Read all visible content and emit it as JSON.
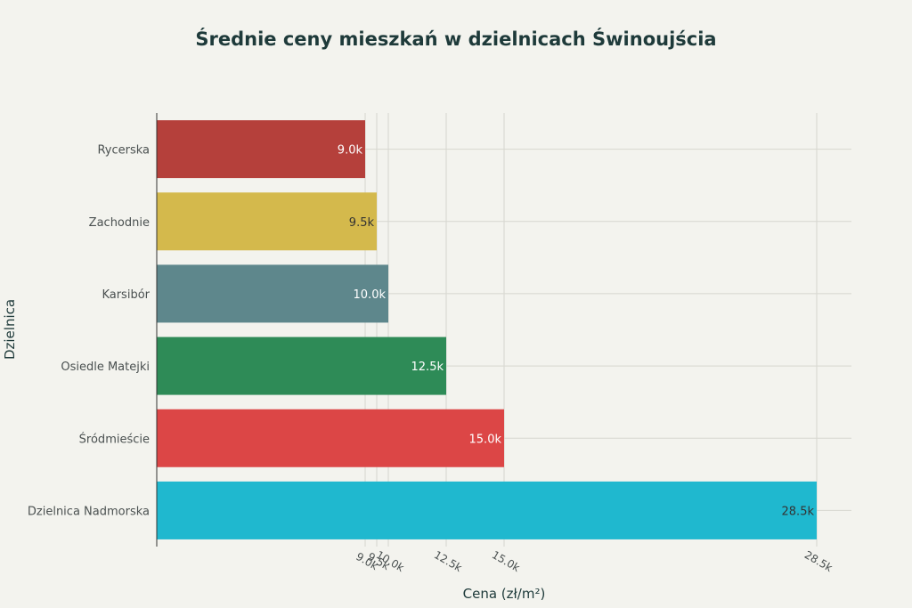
{
  "chart_data": {
    "type": "bar",
    "orientation": "horizontal",
    "title": "Średnie ceny mieszkań w dzielnicach Świnoujścia",
    "xlabel": "Cena (zł/m²)",
    "ylabel": "Dzielnica",
    "categories": [
      "Rycerska",
      "Zachodnie",
      "Karsibór",
      "Osiedle Matejki",
      "Śródmieście",
      "Dzielnica Nadmorska"
    ],
    "values": [
      9000,
      9500,
      10000,
      12500,
      15000,
      28500
    ],
    "value_labels": [
      "9.0k",
      "9.5k",
      "10.0k",
      "12.5k",
      "15.0k",
      "28.5k"
    ],
    "colors": [
      "#b5403b",
      "#d4b94c",
      "#5e878c",
      "#2e8b57",
      "#dc4646",
      "#1fb8cf"
    ],
    "label_colors": [
      "#ffffff",
      "#333333",
      "#ffffff",
      "#ffffff",
      "#ffffff",
      "#333333"
    ],
    "xticks": [
      9000,
      9500,
      10000,
      12500,
      15000,
      28500
    ],
    "xtick_labels": [
      "9.0k",
      "9.5k",
      "10.0k",
      "12.5k",
      "15.0k",
      "28.5k"
    ],
    "xlim": [
      0,
      30000
    ],
    "grid": true,
    "legend": "none"
  }
}
